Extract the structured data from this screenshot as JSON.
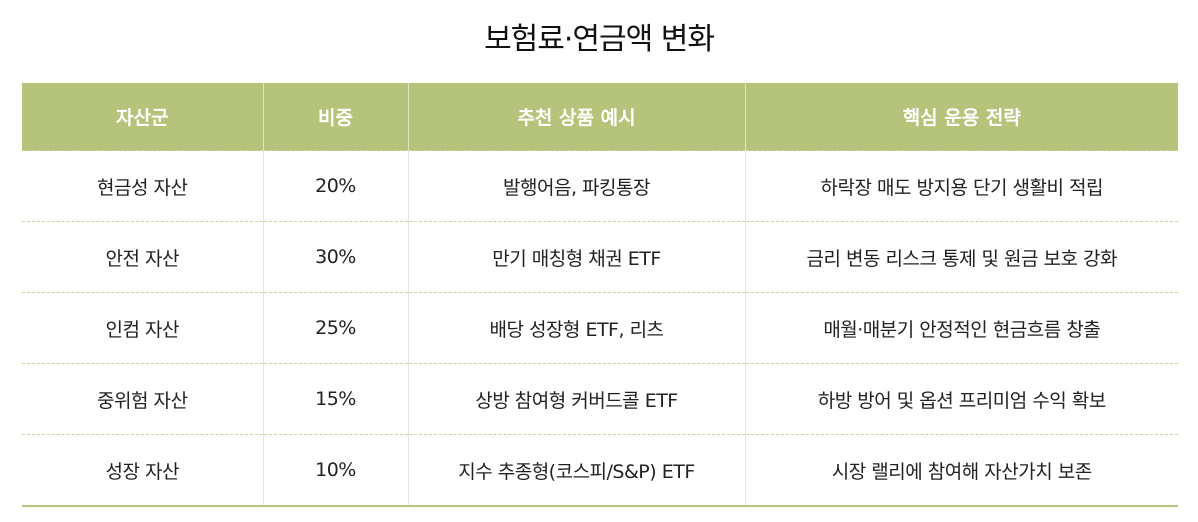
{
  "title": "보험료·연금액 변화",
  "table": {
    "header": [
      "자산군",
      "비중",
      "추천 상품 예시",
      "핵심 운용 전략"
    ],
    "rows": [
      [
        "현금성 자산",
        "20%",
        "발행어음, 파킹통장",
        "하락장 매도 방지용 단기 생활비 적립"
      ],
      [
        "안전 자산",
        "30%",
        "만기 매칭형 채권 ETF",
        "금리 변동 리스크 통제 및 원금 보호 강화"
      ],
      [
        "인컴 자산",
        "25%",
        "배당 성장형 ETF, 리츠",
        "매월·매분기 안정적인 현금흐름 창출"
      ],
      [
        "중위험 자산",
        "15%",
        "상방 참여형 커버드콜 ETF",
        "하방 방어 및 옵션 프리미엄 수익 확보"
      ],
      [
        "성장 자산",
        "10%",
        "지수 추종형(코스피/S&P) ETF",
        "시장 랠리에 참여해 자산가치 보존"
      ]
    ]
  }
}
